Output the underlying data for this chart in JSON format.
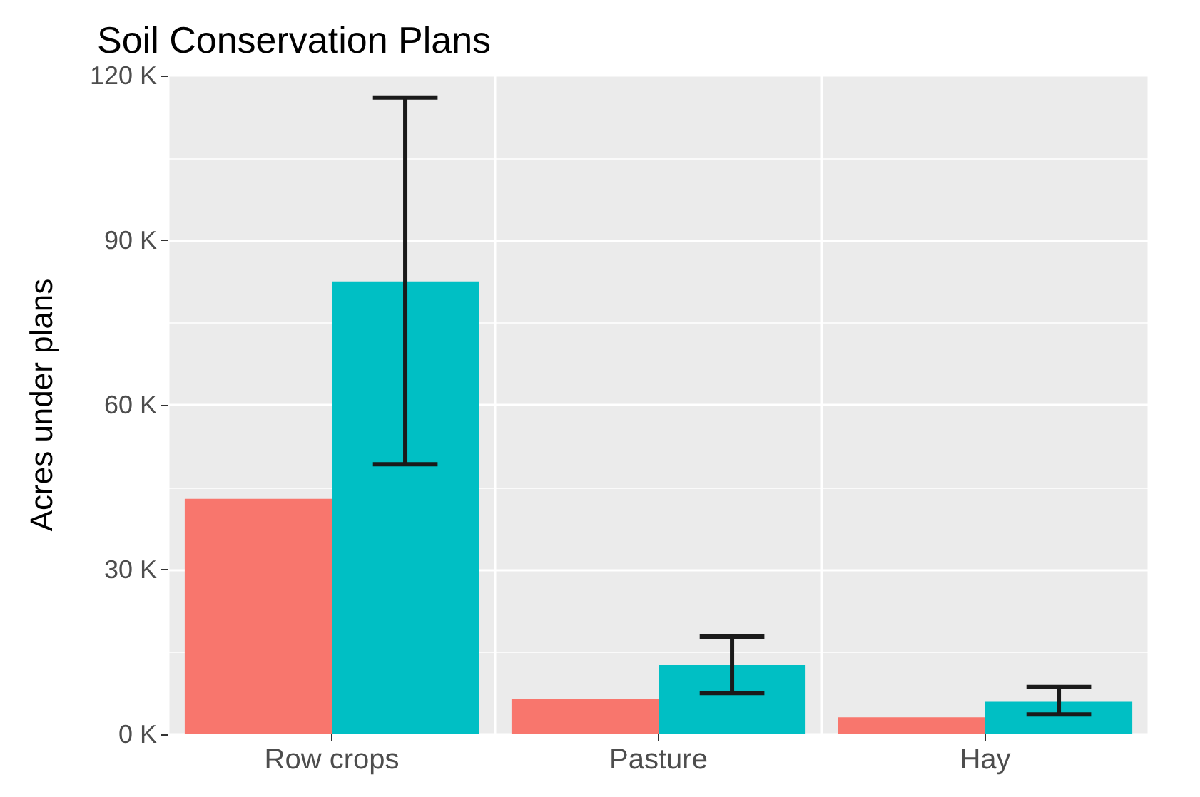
{
  "chart_data": {
    "type": "bar",
    "title": "Soil Conservation Plans",
    "ylabel": "Acres under plans",
    "categories": [
      "Row crops",
      "Pasture",
      "Hay"
    ],
    "series": [
      {
        "color": "#f8766d",
        "values": [
          42900,
          6500,
          3100
        ]
      },
      {
        "color": "#00bfc4",
        "values": [
          82500,
          12600,
          5900
        ],
        "errors": [
          [
            49200,
            116000
          ],
          [
            7500,
            17800
          ],
          [
            3600,
            8600
          ]
        ]
      }
    ],
    "ylim": [
      0,
      120000
    ],
    "yticks": [
      {
        "value": 0,
        "label": "0 K"
      },
      {
        "value": 30000,
        "label": "30 K"
      },
      {
        "value": 60000,
        "label": "60 K"
      },
      {
        "value": 90000,
        "label": "90 K"
      },
      {
        "value": 120000,
        "label": "120 K"
      }
    ],
    "grid": true
  }
}
